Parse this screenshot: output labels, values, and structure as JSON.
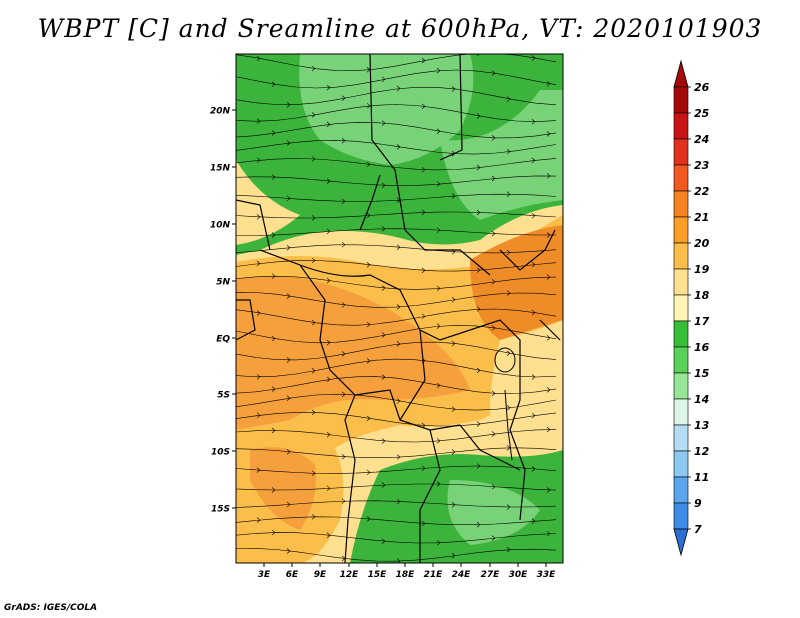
{
  "title": "WBPT [C] and Sreamline at 600hPa, VT: 2020101903",
  "credit": "GrADS: IGES/COLA",
  "lat_labels": [
    "20N",
    "15N",
    "10N",
    "5N",
    "EQ",
    "5S",
    "10S",
    "15S"
  ],
  "lon_labels": [
    "3E",
    "6E",
    "9E",
    "12E",
    "15E",
    "18E",
    "21E",
    "24E",
    "27E",
    "30E",
    "33E"
  ],
  "colorbar": {
    "labels": [
      "26",
      "25",
      "24",
      "23",
      "22",
      "21",
      "20",
      "19",
      "18",
      "17",
      "16",
      "15",
      "14",
      "13",
      "12",
      "11",
      "9",
      "7"
    ],
    "colors": [
      "#a50a0a",
      "#c81414",
      "#e1321e",
      "#f05a1e",
      "#f58220",
      "#fa9e28",
      "#fcbe4a",
      "#ffe090",
      "#fff5b4",
      "#37be37",
      "#5ad25a",
      "#96e696",
      "#dcf5e6",
      "#b4dcf5",
      "#8cc8f0",
      "#5aa5eb",
      "#3c8ce6",
      "#2a6ed2"
    ],
    "top_arrow_color": "#a50a0a",
    "bottom_arrow_color": "#2a6ed2"
  },
  "map_colors": {
    "green_dark": "#3cb43c",
    "green_light": "#78d278",
    "yellow": "#ffe090",
    "orange_light": "#fcbe4a",
    "orange": "#f5a03c",
    "orange_dark": "#f08c28"
  }
}
